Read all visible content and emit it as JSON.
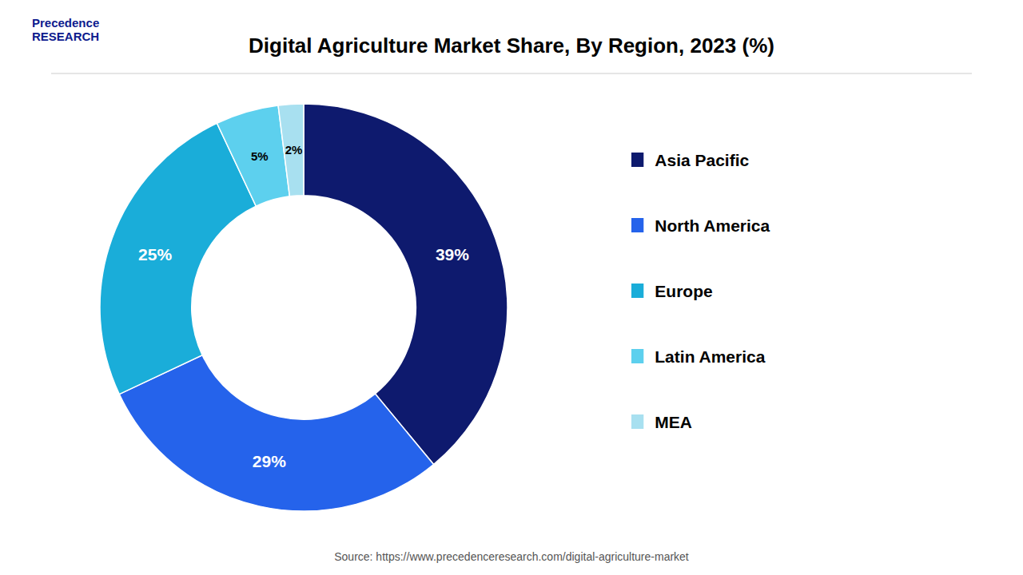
{
  "chart_data": {
    "type": "pie",
    "title": "Digital Agriculture Market Share, By Region, 2023 (%)",
    "categories": [
      "Asia Pacific",
      "North America",
      "Europe",
      "Latin America",
      "MEA"
    ],
    "values": [
      39,
      29,
      25,
      5,
      2
    ],
    "value_labels": [
      "39%",
      "29%",
      "25%",
      "5%",
      "2%"
    ],
    "colors": [
      "#0E1A6E",
      "#2563EB",
      "#1AADD9",
      "#5DD0EE",
      "#A8E0F0"
    ],
    "data_labels": true,
    "legend": "right",
    "annotations": [
      "Precedence\nRESEARCH",
      "Source: https://www.precedenceresearch.com/digital-agriculture-market"
    ]
  }
}
